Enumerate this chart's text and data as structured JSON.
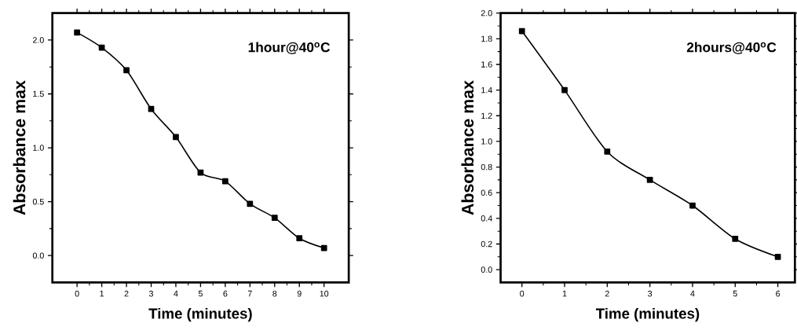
{
  "chart_data": [
    {
      "type": "line",
      "marker": "square",
      "line_style": "solid",
      "xlabel": "Time (minutes)",
      "ylabel": "Absorbance max",
      "annotations": [
        "1hour@40$^{o}$C"
      ],
      "x": [
        0,
        1,
        2,
        3,
        4,
        5,
        6,
        7,
        8,
        9,
        10
      ],
      "series": [
        {
          "color": "#000000",
          "values": [
            2.07,
            1.93,
            1.72,
            1.36,
            1.1,
            0.77,
            0.69,
            0.48,
            0.35,
            0.16,
            0.07
          ]
        }
      ],
      "xlim": [
        -1,
        11
      ],
      "ylim": [
        -0.25,
        2.25
      ],
      "xticks": [
        0,
        1,
        2,
        3,
        4,
        5,
        6,
        7,
        8,
        9,
        10
      ],
      "yticks": [
        {
          "value": 0,
          "label": "0.0"
        },
        {
          "value": 0.5,
          "label": "0.5"
        },
        {
          "value": 1,
          "label": "1.0"
        },
        {
          "value": 1.5,
          "label": "1.5"
        },
        {
          "value": 2,
          "label": "2.0"
        }
      ]
    },
    {
      "type": "line",
      "marker": "square",
      "line_style": "solid",
      "xlabel": "Time (minutes)",
      "ylabel": "Absorbance max",
      "annotations": [
        "2hours@40$^{o}$C"
      ],
      "x": [
        0,
        1,
        2,
        3,
        4,
        5,
        6
      ],
      "series": [
        {
          "color": "#000000",
          "values": [
            1.86,
            1.4,
            0.92,
            0.7,
            0.5,
            0.24,
            0.1
          ]
        }
      ],
      "xlim": [
        -0.5,
        6.4
      ],
      "ylim": [
        -0.1,
        2.0
      ],
      "xticks": [
        0,
        1,
        2,
        3,
        4,
        5,
        6
      ],
      "yticks": [
        {
          "value": 0,
          "label": "0.0"
        },
        {
          "value": 0.2,
          "label": "0.2"
        },
        {
          "value": 0.4,
          "label": "0.4"
        },
        {
          "value": 0.6,
          "label": "0.6"
        },
        {
          "value": 0.8,
          "label": "0.8"
        },
        {
          "value": 1.0,
          "label": "1.0"
        },
        {
          "value": 1.2,
          "label": "1.2"
        },
        {
          "value": 1.4,
          "label": "1.4"
        },
        {
          "value": 1.6,
          "label": "1.6"
        },
        {
          "value": 1.8,
          "label": "1.8"
        },
        {
          "value": 2.0,
          "label": "2.0"
        }
      ]
    }
  ]
}
